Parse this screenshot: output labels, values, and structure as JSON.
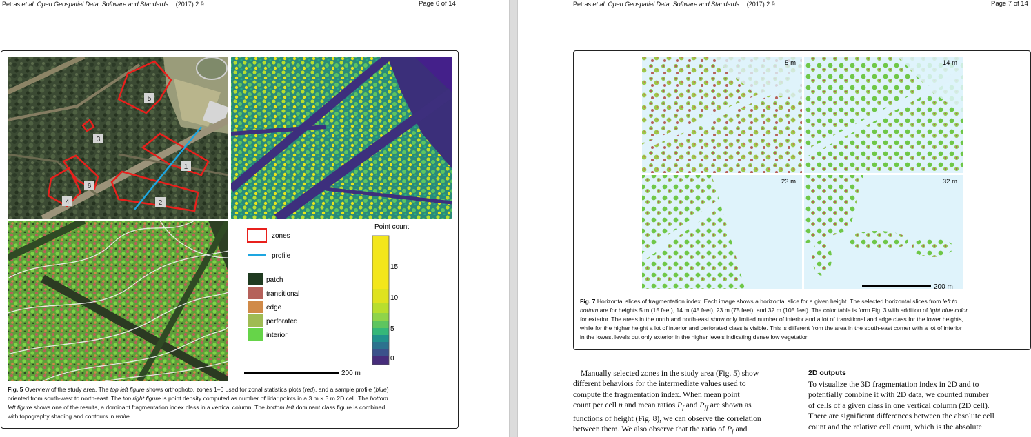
{
  "left_page": {
    "header": {
      "authors": "Petras",
      "etal": "et al.",
      "journal": "Open Geospatial Data, Software and Standards",
      "year": "(2017) 2:9",
      "page": "Page 6 of 14"
    },
    "figure5": {
      "zone_labels": [
        "5",
        "3",
        "1",
        "6",
        "4",
        "2"
      ],
      "legend": {
        "zones": "zones",
        "profile": "profile",
        "classes": [
          {
            "label": "patch",
            "color": "#1f3a20"
          },
          {
            "label": "transitional",
            "color": "#b5615a"
          },
          {
            "label": "edge",
            "color": "#d08a48"
          },
          {
            "label": "perforated",
            "color": "#9fbb53"
          },
          {
            "label": "interior",
            "color": "#66d449"
          }
        ]
      },
      "colorbar": {
        "title": "Point count",
        "ticks": [
          "15",
          "10",
          "5",
          "0"
        ],
        "range": [
          0,
          19
        ]
      },
      "scalebar": "200 m",
      "caption": {
        "label": "Fig. 5",
        "t1": " Overview of the study area. The ",
        "i1": "top left figure",
        "t2": " shows orthophoto, zones 1–6 used for zonal statistics plots (",
        "i2": "red",
        "t3": "), and a sample profile (",
        "i3": "blue",
        "t4": ")",
        "line2a": "oriented from south-west to north-east. The ",
        "line2i": "top right figure",
        "line2b": " is point density computed as number of lidar points in a 3 m × 3 m 2D cell. The ",
        "line2i2": "bottom",
        "line3i": "left figure",
        "line3a": " shows one of the results, a dominant fragmentation index class in a vertical column. The ",
        "line3i2": "bottom left",
        "line3b": " dominant class figure is combined",
        "line4a": "with topography shading and contours in ",
        "line4i": "white"
      }
    }
  },
  "right_page": {
    "header": {
      "authors": "Petras",
      "etal": "et al.",
      "journal": "Open Geospatial Data, Software and Standards",
      "year": "(2017) 2:9",
      "page": "Page 7 of 14"
    },
    "figure7": {
      "panel_labels": [
        "5 m",
        "14 m",
        "23 m",
        "32 m"
      ],
      "scalebar": "200 m",
      "caption": {
        "label": "Fig. 7",
        "l1a": " Horizontal slices of fragmentation index. Each image shows a horizontal slice for a given height. The selected horizontal slices from ",
        "l1i": "left to",
        "l2i": "bottom",
        "l2a": " are for heights 5 m (15 feet), 14 m (45 feet), 23 m (75 feet), and 32 m (105 feet). The color table is form Fig. 3 with addition of ",
        "l2i2": "light blue color",
        "l3": "for exterior. The areas in the north and north-east show only limited number of interior and a lot of transitional and edge class for the lower heights,",
        "l4": "while for the higher height a lot of interior and perforated class is visible. This is different from the area in the south-east corner with a lot of interior",
        "l5": "in the lowest levels but only exterior in the higher levels indicating dense low vegetation"
      }
    },
    "left_column": [
      "Manually selected zones in the study area (Fig. 5) show",
      "different behaviors for the intermediate values used to",
      "compute the fragmentation index. When mean point",
      "count per cell",
      "and mean ratios",
      "and",
      "are shown as",
      "functions of height (Fig. 8), we can observe the correlation",
      "between them. We also observe that the ratio of",
      "and"
    ],
    "math": {
      "n": "n",
      "pf": "P",
      "pf_sub": "f",
      "pff_sub": "ff"
    },
    "section_title": "2D outputs",
    "right_column": [
      "To visualize the 3D fragmentation index in 2D and to",
      "potentially combine it with 2D data, we counted number",
      "of cells of a given class in one vertical column (2D cell).",
      "There are significant differences between the absolute cell",
      "count and the relative cell count, which is the absolute"
    ]
  }
}
